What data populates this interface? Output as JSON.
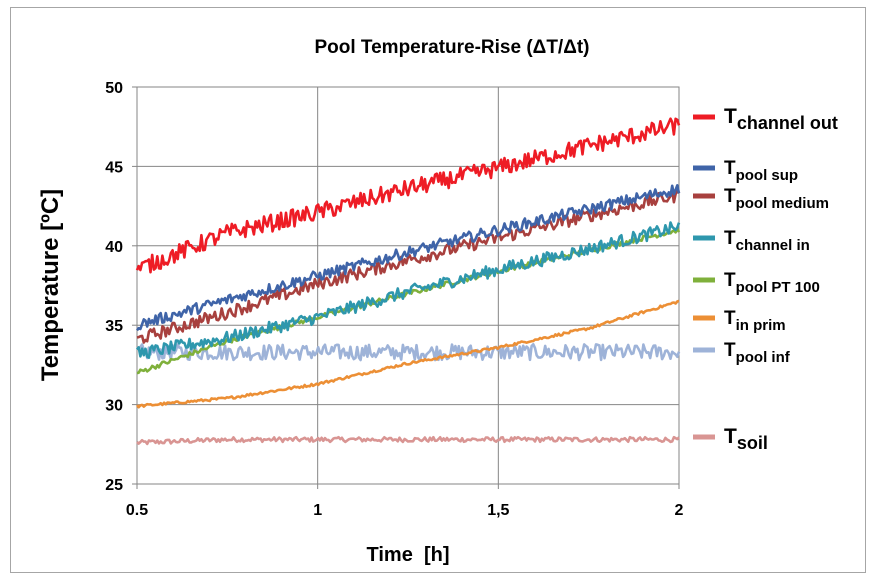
{
  "chart_data": {
    "type": "line",
    "title": "Pool Temperature-Rise (ΔT/Δt)",
    "xlabel": "Time  [h]",
    "ylabel": "Temperature [ºC]",
    "xlim": [
      0.5,
      2
    ],
    "ylim": [
      25,
      50
    ],
    "x_ticks": [
      0.5,
      1,
      1.5,
      2
    ],
    "x_tick_labels": [
      "0.5",
      "1",
      "1,5",
      "2"
    ],
    "y_ticks": [
      25,
      30,
      35,
      40,
      45,
      50
    ],
    "y_tick_labels": [
      "25",
      "30",
      "35",
      "40",
      "45",
      "50"
    ],
    "grid": true,
    "legend": "right",
    "series": [
      {
        "name_main": "T",
        "name_sub": "channel out",
        "color": "#ee1c25",
        "noise": 0.55,
        "x": [
          0.5,
          0.75,
          1.0,
          1.25,
          1.5,
          1.75,
          2.0
        ],
        "values": [
          38.5,
          40.8,
          42.1,
          43.6,
          44.9,
          46.3,
          47.6
        ]
      },
      {
        "name_main": "T",
        "name_sub": "pool sup",
        "color": "#3f64a8",
        "noise": 0.35,
        "x": [
          0.5,
          0.75,
          1.0,
          1.25,
          1.5,
          1.75,
          2.0
        ],
        "values": [
          35.0,
          36.6,
          38.1,
          39.6,
          41.0,
          42.3,
          43.6
        ]
      },
      {
        "name_main": "T",
        "name_sub": "pool medium",
        "color": "#a8403e",
        "noise": 0.4,
        "x": [
          0.5,
          0.75,
          1.0,
          1.25,
          1.5,
          1.75,
          2.0
        ],
        "values": [
          34.1,
          35.8,
          37.6,
          39.1,
          40.5,
          41.9,
          43.2
        ]
      },
      {
        "name_main": "T",
        "name_sub": "channel in",
        "color": "#2e97ad",
        "noise": 0.4,
        "x": [
          0.5,
          0.75,
          1.0,
          1.25,
          1.5,
          1.75,
          2.0
        ],
        "values": [
          33.2,
          34.2,
          35.5,
          37.1,
          38.5,
          39.8,
          41.2
        ]
      },
      {
        "name_main": "T",
        "name_sub": "pool PT 100",
        "color": "#7fb03b",
        "noise": 0.15,
        "x": [
          0.5,
          0.75,
          1.0,
          1.25,
          1.5,
          1.75,
          2.0
        ],
        "values": [
          32.0,
          34.0,
          35.5,
          37.0,
          38.4,
          39.7,
          41.0
        ]
      },
      {
        "name_main": "T",
        "name_sub": "in prim",
        "color": "#ec8f35",
        "noise": 0.08,
        "x": [
          0.5,
          0.75,
          1.0,
          1.25,
          1.5,
          1.75,
          2.0
        ],
        "values": [
          29.9,
          30.4,
          31.3,
          32.6,
          33.6,
          34.8,
          36.5
        ]
      },
      {
        "name_main": "T",
        "name_sub": "pool inf",
        "color": "#9eb3d8",
        "noise": 0.5,
        "x": [
          0.5,
          0.75,
          1.0,
          1.25,
          1.5,
          1.75,
          2.0
        ],
        "values": [
          33.3,
          33.3,
          33.3,
          33.3,
          33.3,
          33.3,
          33.3
        ]
      },
      {
        "name_main": "T",
        "name_sub": "soil",
        "color": "#d99593",
        "noise": 0.15,
        "x": [
          0.5,
          0.75,
          1.0,
          1.25,
          1.5,
          1.75,
          2.0
        ],
        "values": [
          27.6,
          27.8,
          27.8,
          27.8,
          27.8,
          27.8,
          27.8
        ]
      }
    ]
  }
}
